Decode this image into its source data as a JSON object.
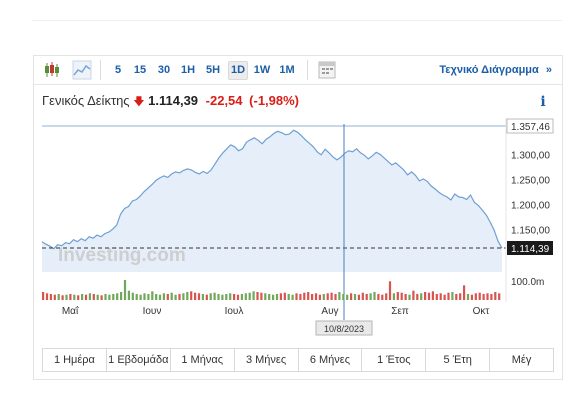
{
  "toolbar": {
    "icons": [
      "candlestick-icon",
      "area-chart-icon",
      "calendar-icon"
    ],
    "intervals": [
      "5",
      "15",
      "30",
      "1H",
      "5H",
      "1D",
      "1W",
      "1M"
    ],
    "active_interval": "1D",
    "technical_label": "Τεχνικό Διάγραμμα",
    "technical_arrow": "»"
  },
  "quote": {
    "name": "Γενικός Δείκτης",
    "direction_icon": "down-arrow-icon",
    "price": "1.114,39",
    "change": "-22,54",
    "change_pct": "(-1,98%)"
  },
  "chart_data": {
    "type": "area",
    "y_ticks": [
      "1.300,00",
      "1.250,00",
      "1.200,00",
      "1.150,00",
      "100.0m"
    ],
    "high_label": "1.357,46",
    "last_label": "1.114,39",
    "last_value": 1114.39,
    "high_value": 1357.46,
    "x_labels": [
      "Μαΐ",
      "Ιουν",
      "Ιουλ",
      "Αυγ",
      "Σεπ",
      "Οκτ"
    ],
    "crosshair_date": "10/8/2023",
    "watermark": "Investing.com",
    "ylim": [
      1100,
      1365
    ],
    "series": [
      {
        "values": [
          1127,
          1122,
          1118,
          1113,
          1121,
          1119,
          1125,
          1123,
          1131,
          1127,
          1133,
          1129,
          1137,
          1134,
          1140,
          1137,
          1143,
          1146,
          1152,
          1160,
          1182,
          1193,
          1197,
          1208,
          1211,
          1218,
          1227,
          1234,
          1241,
          1249,
          1254,
          1258,
          1255,
          1262,
          1266,
          1264,
          1269,
          1272,
          1270,
          1265,
          1262,
          1267,
          1263,
          1270,
          1282,
          1294,
          1304,
          1312,
          1320,
          1316,
          1308,
          1312,
          1325,
          1330,
          1334,
          1329,
          1322,
          1331,
          1336,
          1343,
          1347,
          1344,
          1340,
          1342,
          1349,
          1345,
          1338,
          1330,
          1323,
          1316,
          1306,
          1300,
          1311,
          1304,
          1296,
          1290,
          1295,
          1303,
          1308,
          1306,
          1312,
          1304,
          1299,
          1292,
          1298,
          1305,
          1301,
          1294,
          1287,
          1280,
          1284,
          1277,
          1270,
          1260,
          1266,
          1259,
          1248,
          1252,
          1247,
          1238,
          1232,
          1225,
          1220,
          1216,
          1210,
          1222,
          1216,
          1215,
          1211,
          1220,
          1205,
          1199,
          1190,
          1180,
          1166,
          1150,
          1128,
          1114
        ]
      }
    ],
    "volume": [
      12,
      10,
      9,
      8,
      9,
      7,
      8,
      9,
      8,
      7,
      9,
      8,
      10,
      9,
      8,
      7,
      9,
      8,
      9,
      10,
      12,
      30,
      14,
      11,
      9,
      8,
      10,
      9,
      13,
      9,
      8,
      10,
      9,
      11,
      8,
      9,
      10,
      12,
      13,
      11,
      10,
      9,
      8,
      10,
      11,
      9,
      8,
      9,
      10,
      9,
      8,
      9,
      10,
      11,
      13,
      12,
      11,
      10,
      9,
      8,
      9,
      10,
      11,
      9,
      8,
      10,
      9,
      11,
      12,
      9,
      10,
      8,
      9,
      10,
      11,
      9,
      12,
      9,
      8,
      10,
      9,
      8,
      11,
      9,
      10,
      12,
      9,
      8,
      10,
      28,
      10,
      12,
      11,
      9,
      8,
      14,
      9,
      10,
      12,
      11,
      13,
      9,
      10,
      8,
      11,
      12,
      9,
      10,
      22,
      9,
      8,
      10,
      11,
      9,
      10,
      9,
      12,
      10
    ]
  },
  "periods": [
    "1 Ημέρα",
    "1 Εβδομάδα",
    "1 Μήνας",
    "3 Μήνες",
    "6 Μήνες",
    "1 Έτος",
    "5 Έτη",
    "Μέγ"
  ],
  "colors": {
    "line": "#6e9fd4",
    "fill": "#e6eff9",
    "volume_down": "#d9534f",
    "volume_up": "#6fa85a",
    "link": "#1c5ea8",
    "change": "#d91e18"
  }
}
